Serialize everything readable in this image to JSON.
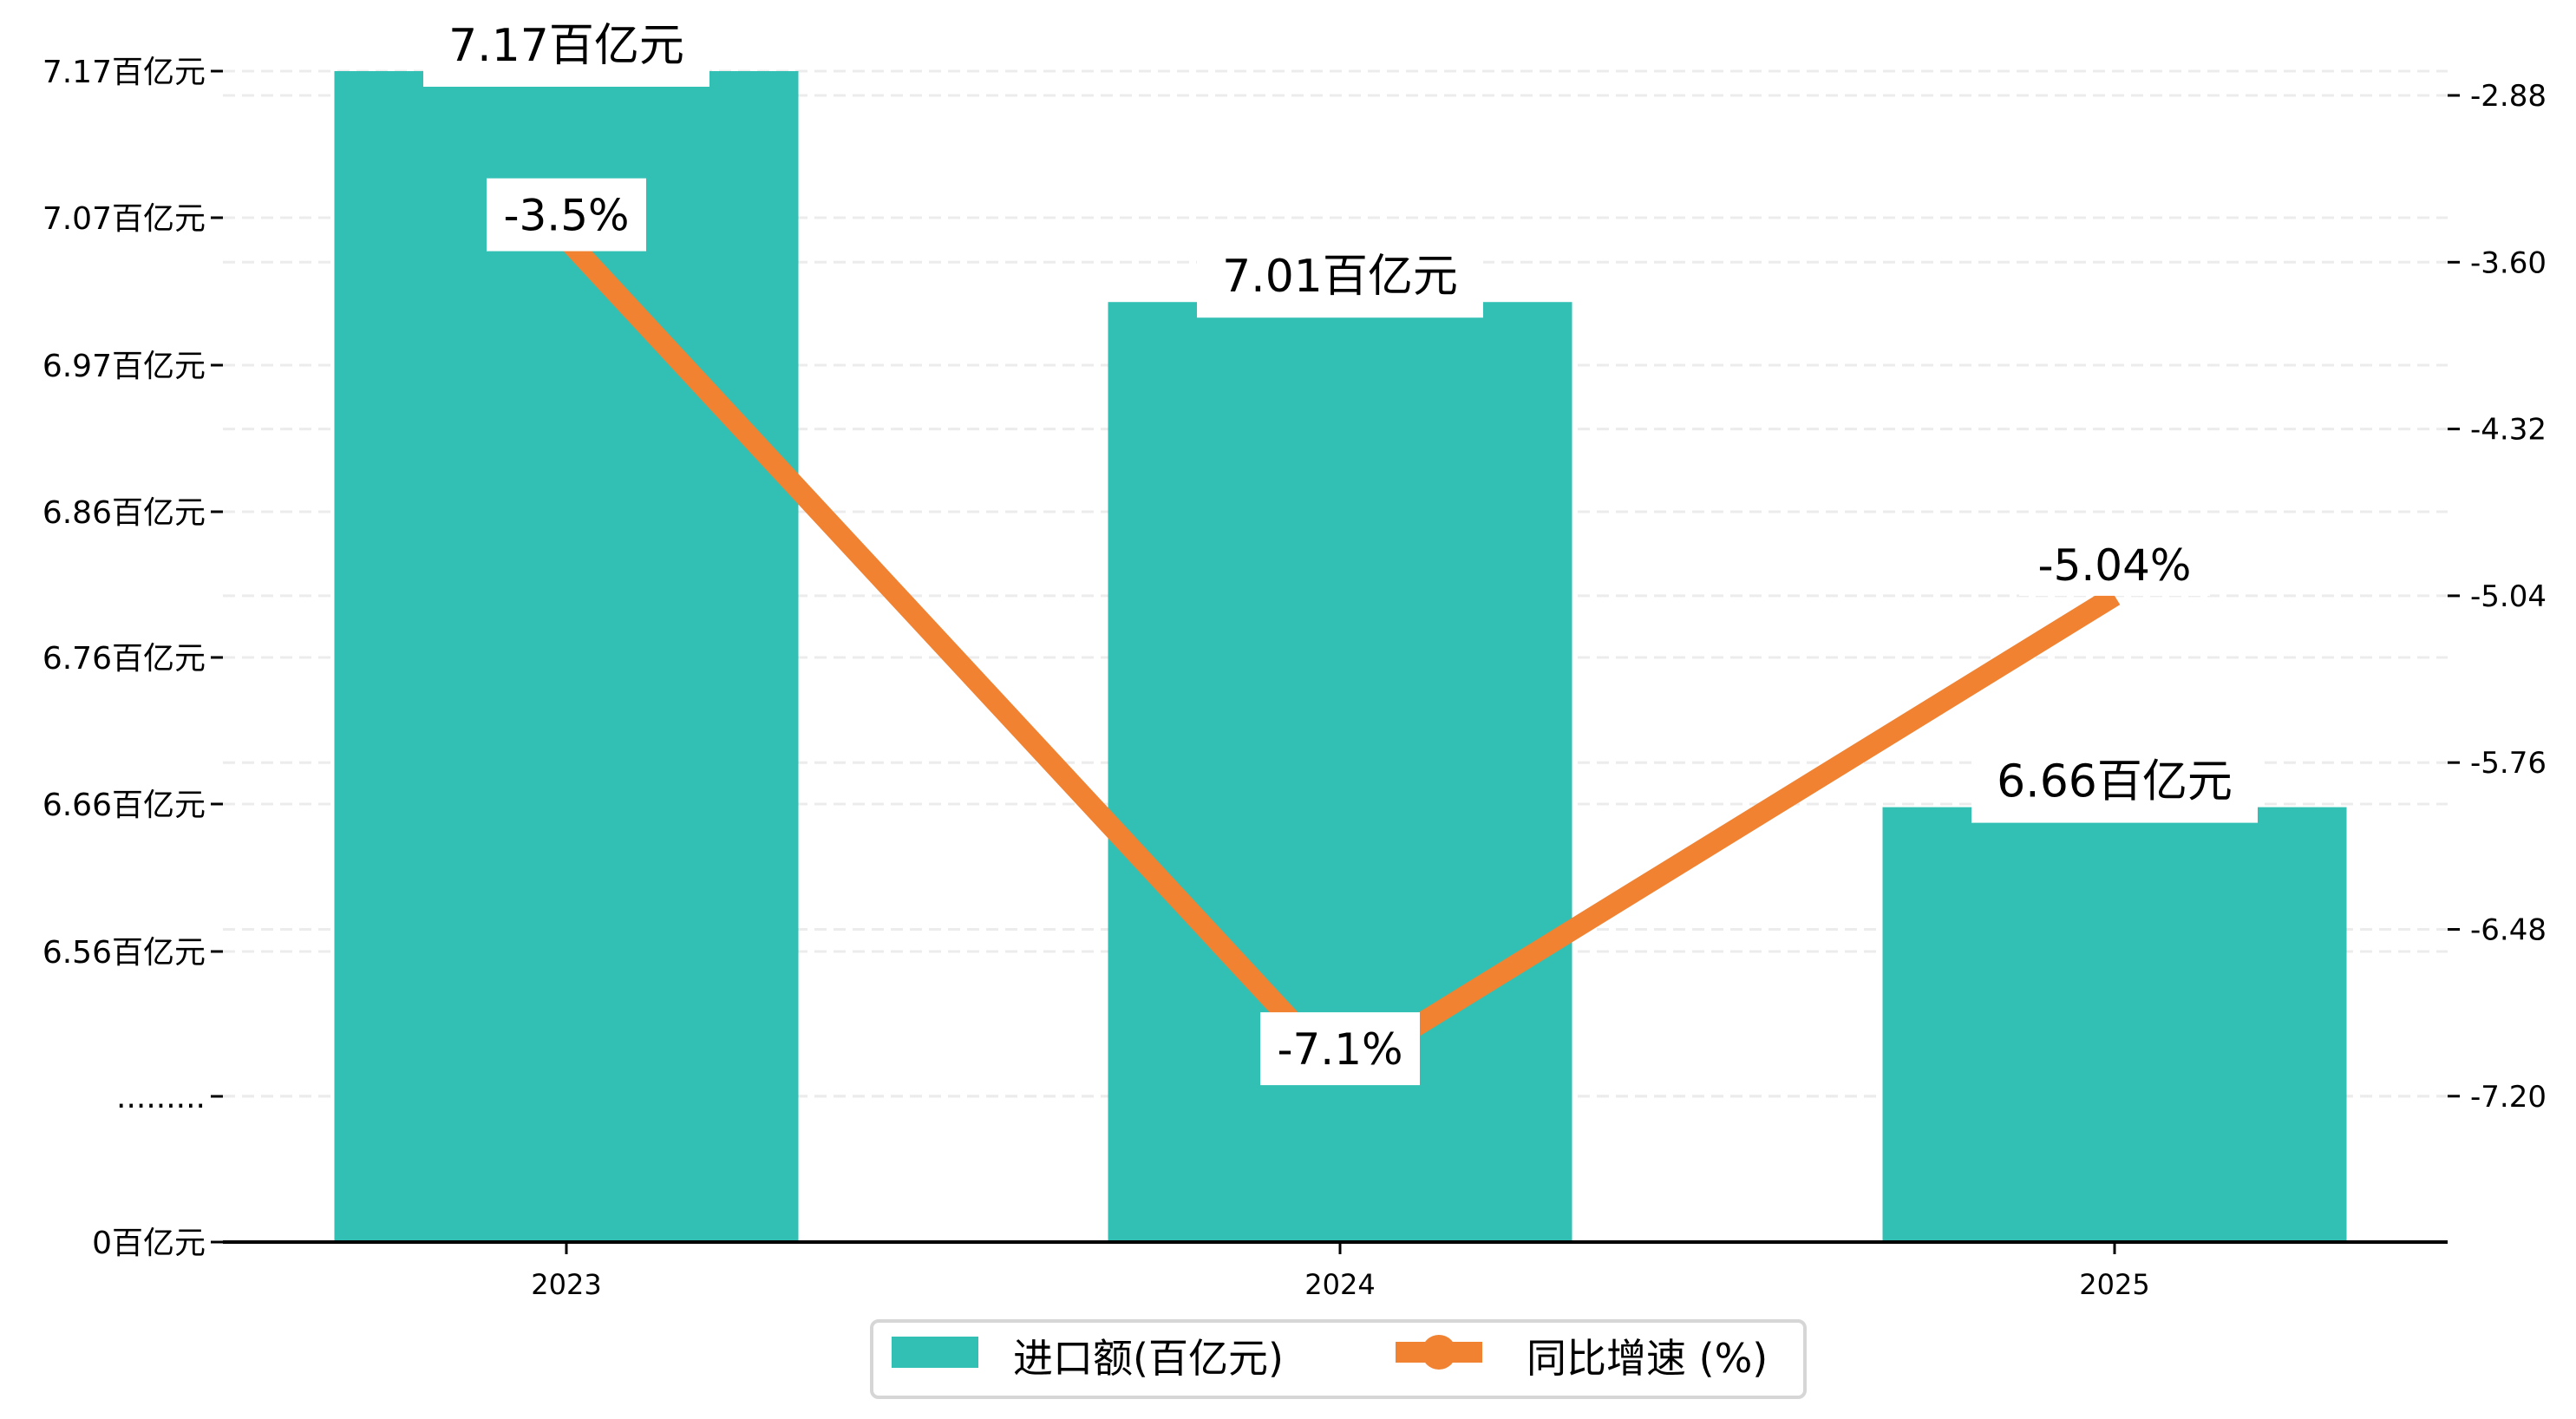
{
  "chart_data": {
    "type": "bar+line",
    "categories": [
      "2023",
      "2024",
      "2025"
    ],
    "series": [
      {
        "name": "进口额(百亿元)",
        "type": "bar",
        "axis": "left",
        "values": [
          7.17,
          7.01,
          6.66
        ],
        "labels": [
          "7.17百亿元",
          "7.01百亿元",
          "6.66百亿元"
        ],
        "color": "#32c0b4"
      },
      {
        "name": "同比增速 (%)",
        "type": "line",
        "axis": "right",
        "values": [
          -3.5,
          -7.1,
          -5.04
        ],
        "labels": [
          "-3.5%",
          "-7.1%",
          "-5.04%"
        ],
        "color": "#f08232"
      }
    ],
    "left_axis": {
      "ticks": [
        {
          "value": 7.17,
          "label": "7.17百亿元"
        },
        {
          "value": 7.07,
          "label": "7.07百亿元"
        },
        {
          "value": 6.97,
          "label": "6.97百亿元"
        },
        {
          "value": 6.86,
          "label": "6.86百亿元"
        },
        {
          "value": 6.76,
          "label": "6.76百亿元"
        },
        {
          "value": 6.66,
          "label": "6.66百亿元"
        },
        {
          "value": 6.56,
          "label": "6.56百亿元"
        },
        {
          "value": null,
          "label": "........."
        },
        {
          "value": 0,
          "label": "0百亿元"
        }
      ],
      "broken": true
    },
    "right_axis": {
      "ticks": [
        -2.88,
        -3.6,
        -4.32,
        -5.04,
        -5.76,
        -6.48,
        -7.2
      ],
      "tick_labels": [
        "-2.88",
        "-3.60",
        "-4.32",
        "-5.04",
        "-5.76",
        "-6.48",
        "-7.20"
      ]
    },
    "grid": true,
    "legend_position": "bottom-center"
  }
}
